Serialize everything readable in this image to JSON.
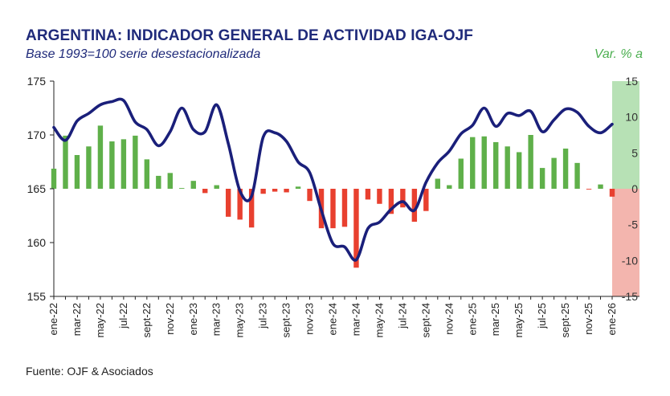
{
  "header": {
    "title": "ARGENTINA: INDICADOR GENERAL DE ACTIVIDAD IGA-OJF",
    "subtitle": "Base 1993=100 serie desestacionalizada",
    "right_axis_unit": "Var. % a"
  },
  "footer": {
    "source": "Fuente: OJF & Asociados"
  },
  "colors": {
    "line": "#1a1f7a",
    "positive_bar": "#5fb04a",
    "negative_bar": "#e8402f",
    "positive_band": "#b7e1b5",
    "negative_band": "#f3b5ae",
    "title": "#1f2a7a",
    "right_label": "#4caf50"
  },
  "chart_data": {
    "type": "bar+line",
    "months": [
      "ene-22",
      "feb-22",
      "mar-22",
      "abr-22",
      "may-22",
      "jun-22",
      "jul-22",
      "ago-22",
      "sept-22",
      "oct-22",
      "nov-22",
      "dic-22",
      "ene-23",
      "feb-23",
      "mar-23",
      "abr-23",
      "may-23",
      "jun-23",
      "jul-23",
      "ago-23",
      "sept-23",
      "oct-23",
      "nov-23",
      "dic-23",
      "ene-24",
      "feb-24",
      "mar-24",
      "abr-24",
      "may-24",
      "jun-24",
      "jul-24",
      "ago-24",
      "sept-24",
      "oct-24",
      "nov-24",
      "dic-24",
      "ene-25",
      "feb-25",
      "mar-25",
      "abr-25",
      "may-25",
      "jun-25",
      "jul-25",
      "ago-25",
      "sept-25",
      "oct-25",
      "nov-25",
      "dic-25",
      "ene-26"
    ],
    "x_tick_labels": [
      "ene-22",
      "mar-22",
      "may-22",
      "jul-22",
      "sept-22",
      "nov-22",
      "ene-23",
      "mar-23",
      "may-23",
      "jul-23",
      "sept-23",
      "nov-23",
      "ene-24",
      "mar-24",
      "may-24",
      "jul-24",
      "sept-24",
      "nov-24",
      "ene-25",
      "mar-25",
      "may-25",
      "jul-25",
      "sept-25",
      "nov-25",
      "ene-26"
    ],
    "series": [
      {
        "type": "line",
        "axis": "left",
        "values": [
          170.7,
          169.5,
          171.3,
          172.0,
          172.8,
          173.1,
          173.2,
          171.2,
          170.5,
          169.0,
          170.3,
          172.5,
          170.5,
          170.3,
          172.8,
          169.2,
          164.8,
          164.3,
          169.8,
          170.2,
          169.4,
          167.5,
          166.5,
          163.0,
          159.9,
          159.6,
          158.4,
          161.3,
          161.9,
          163.1,
          163.8,
          163.0,
          165.6,
          167.4,
          168.5,
          170.1,
          170.9,
          172.5,
          170.8,
          172.0,
          171.8,
          172.2,
          170.3,
          171.4,
          172.4,
          172.1,
          170.8,
          170.2,
          171.0
        ]
      },
      {
        "type": "bar",
        "axis": "right",
        "values": [
          2.8,
          7.4,
          4.7,
          5.9,
          8.8,
          6.6,
          6.9,
          7.4,
          4.1,
          1.8,
          2.2,
          0.1,
          1.1,
          -0.6,
          0.5,
          -3.9,
          -4.3,
          -5.4,
          -0.7,
          -0.4,
          -0.5,
          0.3,
          -1.7,
          -5.5,
          -5.5,
          -5.3,
          -11.0,
          -1.5,
          -2.1,
          -3.5,
          -2.6,
          -4.6,
          -3.1,
          1.4,
          0.5,
          4.2,
          7.2,
          7.3,
          6.5,
          5.9,
          5.1,
          7.5,
          2.9,
          4.3,
          5.6,
          3.6,
          -0.1,
          0.6,
          -1.1
        ]
      }
    ],
    "left_axis": {
      "min": 155,
      "max": 175,
      "ticks": [
        155,
        160,
        165,
        170,
        175
      ]
    },
    "right_axis": {
      "min": -15,
      "max": 15,
      "ticks": [
        -15,
        -10,
        -5,
        0,
        5,
        10,
        15
      ]
    }
  }
}
